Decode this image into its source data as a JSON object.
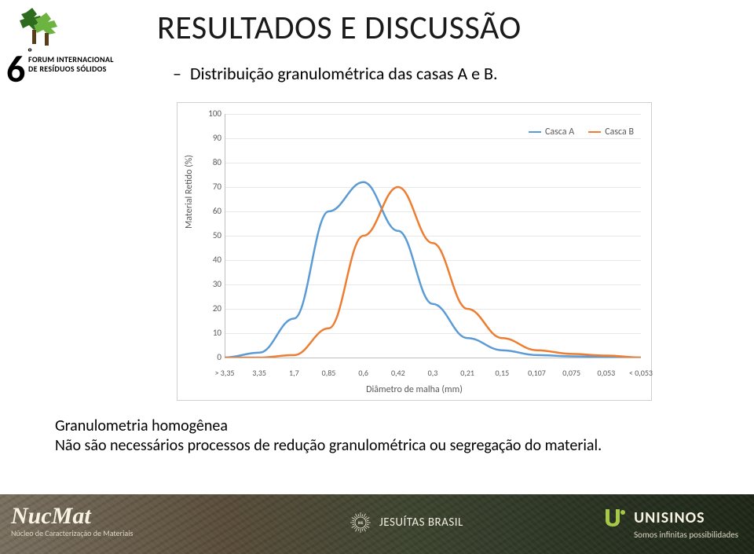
{
  "header": {
    "forum_number": "6",
    "forum_ord": "º",
    "forum_line1": "FORUM INTERNACIONAL",
    "forum_line2": "DE RESÍDUOS SÓLIDOS",
    "tree_colors": {
      "dark": "#2d6b1f",
      "light": "#6db33f",
      "trunk": "#5a3d1a"
    }
  },
  "title": "RESULTADOS E DISCUSSÃO",
  "subtitle": "Distribuição granulométrica das casas A e B.",
  "chart": {
    "type": "line",
    "y_label": "Material Retido (%)",
    "x_label": "Diâmetro de malha (mm)",
    "ylim": [
      0,
      100
    ],
    "y_ticks": [
      0,
      10,
      20,
      30,
      40,
      50,
      60,
      70,
      80,
      90,
      100
    ],
    "x_categories": [
      "> 3,35",
      "3,35",
      "1,7",
      "0,85",
      "0,6",
      "0,42",
      "0,3",
      "0,21",
      "0,15",
      "0,107",
      "0,075",
      "0,053",
      "< 0,053"
    ],
    "series": [
      {
        "name": "Casca A",
        "color": "#5b9bd5",
        "values": [
          0,
          2,
          16,
          60,
          72,
          52,
          22,
          8,
          3,
          1,
          0.5,
          0.3,
          0
        ]
      },
      {
        "name": "Casca B",
        "color": "#ed7d31",
        "values": [
          0,
          0,
          1,
          12,
          50,
          70,
          47,
          20,
          8,
          3,
          1.5,
          0.8,
          0
        ]
      }
    ],
    "background_color": "#ffffff",
    "grid_color": "#e8e8e8",
    "axis_color": "#bfbfbf",
    "tick_font_color": "#595959",
    "tick_fontsize": 11,
    "label_fontsize": 12,
    "line_width": 2.5,
    "legend_position": "top-right"
  },
  "caption_line1": "Granulometria homogênea",
  "caption_line2": "Não são necessários processos de redução granulométrica ou segregação do material.",
  "footer": {
    "nucmat_title": "NucMat",
    "nucmat_sub": "Núcleo de Caracterização de Materiais",
    "jesuitas": "JESUÍTAS BRASIL",
    "unisinos": "UNISINOS",
    "unisinos_tag": "Somos infinitas possibilidades",
    "unisinos_color": "#a7c94a"
  }
}
